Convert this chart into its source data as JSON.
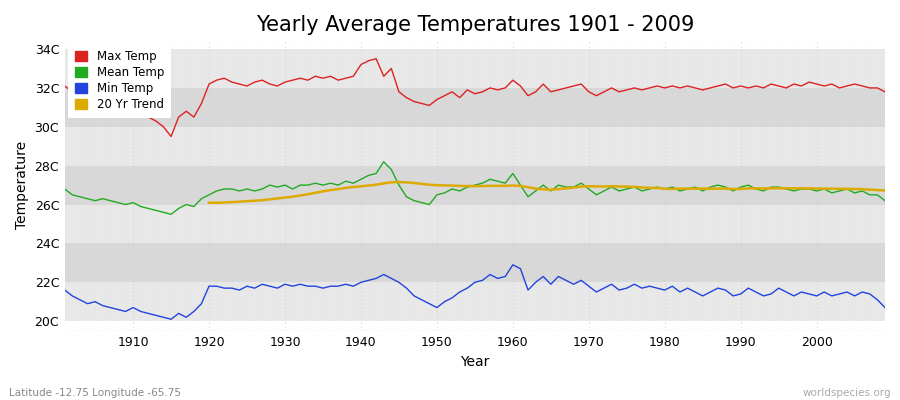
{
  "title": "Yearly Average Temperatures 1901 - 2009",
  "xlabel": "Year",
  "ylabel": "Temperature",
  "footnote_left": "Latitude -12.75 Longitude -65.75",
  "footnote_right": "worldspecies.org",
  "years": [
    1901,
    1902,
    1903,
    1904,
    1905,
    1906,
    1907,
    1908,
    1909,
    1910,
    1911,
    1912,
    1913,
    1914,
    1915,
    1916,
    1917,
    1918,
    1919,
    1920,
    1921,
    1922,
    1923,
    1924,
    1925,
    1926,
    1927,
    1928,
    1929,
    1930,
    1931,
    1932,
    1933,
    1934,
    1935,
    1936,
    1937,
    1938,
    1939,
    1940,
    1941,
    1942,
    1943,
    1944,
    1945,
    1946,
    1947,
    1948,
    1949,
    1950,
    1951,
    1952,
    1953,
    1954,
    1955,
    1956,
    1957,
    1958,
    1959,
    1960,
    1961,
    1962,
    1963,
    1964,
    1965,
    1966,
    1967,
    1968,
    1969,
    1970,
    1971,
    1972,
    1973,
    1974,
    1975,
    1976,
    1977,
    1978,
    1979,
    1980,
    1981,
    1982,
    1983,
    1984,
    1985,
    1986,
    1987,
    1988,
    1989,
    1990,
    1991,
    1992,
    1993,
    1994,
    1995,
    1996,
    1997,
    1998,
    1999,
    2000,
    2001,
    2002,
    2003,
    2004,
    2005,
    2006,
    2007,
    2008,
    2009
  ],
  "max_temp": [
    32.1,
    31.8,
    31.6,
    31.5,
    31.4,
    31.3,
    31.2,
    31.0,
    30.9,
    30.8,
    30.6,
    30.5,
    30.3,
    30.0,
    29.5,
    30.5,
    30.8,
    30.5,
    31.2,
    32.2,
    32.4,
    32.5,
    32.3,
    32.2,
    32.1,
    32.3,
    32.4,
    32.2,
    32.1,
    32.3,
    32.4,
    32.5,
    32.4,
    32.6,
    32.5,
    32.6,
    32.4,
    32.5,
    32.6,
    33.2,
    33.4,
    33.5,
    32.6,
    33.0,
    31.8,
    31.5,
    31.3,
    31.2,
    31.1,
    31.4,
    31.6,
    31.8,
    31.5,
    31.9,
    31.7,
    31.8,
    32.0,
    31.9,
    32.0,
    32.4,
    32.1,
    31.6,
    31.8,
    32.2,
    31.8,
    31.9,
    32.0,
    32.1,
    32.2,
    31.8,
    31.6,
    31.8,
    32.0,
    31.8,
    31.9,
    32.0,
    31.9,
    32.0,
    32.1,
    32.0,
    32.1,
    32.0,
    32.1,
    32.0,
    31.9,
    32.0,
    32.1,
    32.2,
    32.0,
    32.1,
    32.0,
    32.1,
    32.0,
    32.2,
    32.1,
    32.0,
    32.2,
    32.1,
    32.3,
    32.2,
    32.1,
    32.2,
    32.0,
    32.1,
    32.2,
    32.1,
    32.0,
    32.0,
    31.8
  ],
  "mean_temp": [
    26.8,
    26.5,
    26.4,
    26.3,
    26.2,
    26.3,
    26.2,
    26.1,
    26.0,
    26.1,
    25.9,
    25.8,
    25.7,
    25.6,
    25.5,
    25.8,
    26.0,
    25.9,
    26.3,
    26.5,
    26.7,
    26.8,
    26.8,
    26.7,
    26.8,
    26.7,
    26.8,
    27.0,
    26.9,
    27.0,
    26.8,
    27.0,
    27.0,
    27.1,
    27.0,
    27.1,
    27.0,
    27.2,
    27.1,
    27.3,
    27.5,
    27.6,
    28.2,
    27.8,
    27.0,
    26.4,
    26.2,
    26.1,
    26.0,
    26.5,
    26.6,
    26.8,
    26.7,
    26.9,
    27.0,
    27.1,
    27.3,
    27.2,
    27.1,
    27.6,
    27.0,
    26.4,
    26.7,
    27.0,
    26.7,
    27.0,
    26.9,
    26.9,
    27.1,
    26.8,
    26.5,
    26.7,
    26.9,
    26.7,
    26.8,
    26.9,
    26.7,
    26.8,
    26.9,
    26.8,
    26.9,
    26.7,
    26.8,
    26.9,
    26.7,
    26.9,
    27.0,
    26.9,
    26.7,
    26.9,
    27.0,
    26.8,
    26.7,
    26.9,
    26.9,
    26.8,
    26.7,
    26.8,
    26.8,
    26.7,
    26.8,
    26.6,
    26.7,
    26.8,
    26.6,
    26.7,
    26.5,
    26.5,
    26.2
  ],
  "min_temp": [
    21.6,
    21.3,
    21.1,
    20.9,
    21.0,
    20.8,
    20.7,
    20.6,
    20.5,
    20.7,
    20.5,
    20.4,
    20.3,
    20.2,
    20.1,
    20.4,
    20.2,
    20.5,
    20.9,
    21.8,
    21.8,
    21.7,
    21.7,
    21.6,
    21.8,
    21.7,
    21.9,
    21.8,
    21.7,
    21.9,
    21.8,
    21.9,
    21.8,
    21.8,
    21.7,
    21.8,
    21.8,
    21.9,
    21.8,
    22.0,
    22.1,
    22.2,
    22.4,
    22.2,
    22.0,
    21.7,
    21.3,
    21.1,
    20.9,
    20.7,
    21.0,
    21.2,
    21.5,
    21.7,
    22.0,
    22.1,
    22.4,
    22.2,
    22.3,
    22.9,
    22.7,
    21.6,
    22.0,
    22.3,
    21.9,
    22.3,
    22.1,
    21.9,
    22.1,
    21.8,
    21.5,
    21.7,
    21.9,
    21.6,
    21.7,
    21.9,
    21.7,
    21.8,
    21.7,
    21.6,
    21.8,
    21.5,
    21.7,
    21.5,
    21.3,
    21.5,
    21.7,
    21.6,
    21.3,
    21.4,
    21.7,
    21.5,
    21.3,
    21.4,
    21.7,
    21.5,
    21.3,
    21.5,
    21.4,
    21.3,
    21.5,
    21.3,
    21.4,
    21.5,
    21.3,
    21.5,
    21.4,
    21.1,
    20.7
  ],
  "max_color": "#dd2222",
  "mean_color": "#22aa22",
  "min_color": "#2244dd",
  "trend_color": "#ddaa00",
  "fig_bg_color": "#ffffff",
  "band_colors": [
    "#e8e8e8",
    "#d8d8d8"
  ],
  "grid_color": "#cccccc",
  "yticks": [
    20,
    22,
    24,
    26,
    28,
    30,
    32,
    34
  ],
  "ytick_labels": [
    "20C",
    "22C",
    "24C",
    "26C",
    "28C",
    "30C",
    "32C",
    "34C"
  ],
  "ylim": [
    19.5,
    34.5
  ],
  "xlim": [
    1901,
    2009
  ],
  "xticks": [
    1910,
    1920,
    1930,
    1940,
    1950,
    1960,
    1970,
    1980,
    1990,
    2000
  ],
  "legend_labels": [
    "Max Temp",
    "Mean Temp",
    "Min Temp",
    "20 Yr Trend"
  ],
  "legend_colors": [
    "#dd2222",
    "#22aa22",
    "#2244dd",
    "#ddaa00"
  ],
  "title_fontsize": 15,
  "axis_fontsize": 10,
  "tick_fontsize": 9,
  "line_width": 1.0
}
